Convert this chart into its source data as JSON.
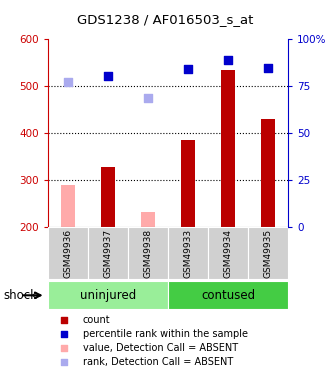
{
  "title": "GDS1238 / AF016503_s_at",
  "samples": [
    "GSM49936",
    "GSM49937",
    "GSM49938",
    "GSM49933",
    "GSM49934",
    "GSM49935"
  ],
  "bar_values": [
    290,
    328,
    232,
    385,
    535,
    430
  ],
  "bar_absent": [
    true,
    false,
    true,
    false,
    false,
    false
  ],
  "bar_color_present": "#bb0000",
  "bar_color_absent": "#ffaaaa",
  "rank_values": [
    510,
    522,
    476,
    537,
    557,
    540
  ],
  "rank_absent": [
    true,
    false,
    true,
    false,
    false,
    false
  ],
  "rank_color_present": "#0000cc",
  "rank_color_absent": "#aaaaee",
  "ylim_left": [
    200,
    600
  ],
  "yticks_left": [
    200,
    300,
    400,
    500,
    600
  ],
  "yticks_right": [
    0,
    25,
    50,
    75,
    100
  ],
  "ytick_labels_right": [
    "0",
    "25",
    "50",
    "75",
    "100%"
  ],
  "left_axis_color": "#cc0000",
  "right_axis_color": "#0000cc",
  "dotted_line_values": [
    300,
    400,
    500
  ],
  "group_color_light": "#99ee99",
  "group_color_dark": "#44cc44",
  "bar_base": 200,
  "bar_width": 0.35
}
